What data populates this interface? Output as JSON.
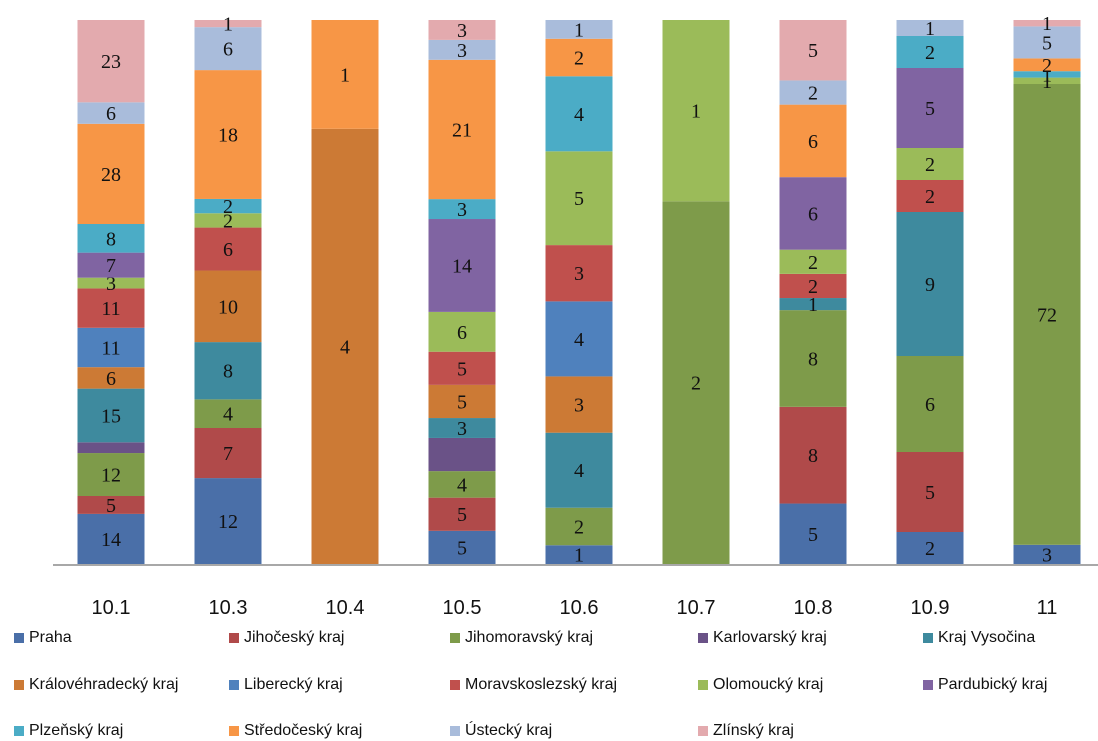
{
  "chart_data": {
    "type": "bar",
    "stacked": true,
    "normalized_to_100_percent": true,
    "categories": [
      "10.1",
      "10.3",
      "10.4",
      "10.5",
      "10.6",
      "10.7",
      "10.8",
      "10.9",
      "11"
    ],
    "legend_position": "bottom",
    "grid": false,
    "series": [
      {
        "name": "Praha",
        "color": "#4A6FA8",
        "values": [
          14,
          12,
          0,
          5,
          1,
          0,
          5,
          2,
          3
        ]
      },
      {
        "name": "Jihočeský kraj",
        "color": "#B04A4A",
        "values": [
          5,
          7,
          0,
          5,
          0,
          0,
          8,
          5,
          0
        ]
      },
      {
        "name": "Jihomoravský kraj",
        "color": "#7E9B4A",
        "values": [
          12,
          4,
          0,
          4,
          2,
          2,
          8,
          6,
          72
        ]
      },
      {
        "name": "Karlovarský kraj",
        "color": "#6A5287",
        "values": [
          3,
          0,
          0,
          5,
          0,
          0,
          0,
          0,
          0
        ],
        "labels": [
          "",
          "",
          "",
          "",
          "",
          "",
          "",
          "",
          ""
        ]
      },
      {
        "name": "Kraj Vysočina",
        "color": "#3E8A9E",
        "values": [
          15,
          8,
          0,
          3,
          4,
          0,
          1,
          9,
          0
        ]
      },
      {
        "name": "Královéhradecký kraj",
        "color": "#CC7A35",
        "values": [
          6,
          10,
          4,
          5,
          3,
          0,
          0,
          0,
          0
        ]
      },
      {
        "name": "Liberecký kraj",
        "color": "#4F81BD",
        "values": [
          11,
          0,
          0,
          0,
          4,
          0,
          0,
          0,
          0
        ]
      },
      {
        "name": "Moravskoslezský kraj",
        "color": "#C0504D",
        "values": [
          11,
          6,
          0,
          5,
          3,
          0,
          2,
          2,
          0
        ]
      },
      {
        "name": "Olomoucký kraj",
        "color": "#9BBB59",
        "values": [
          3,
          2,
          0,
          6,
          5,
          1,
          2,
          2,
          1
        ]
      },
      {
        "name": "Pardubický kraj",
        "color": "#8064A2",
        "values": [
          7,
          0,
          0,
          14,
          0,
          0,
          6,
          5,
          0
        ]
      },
      {
        "name": "Plzeňský kraj",
        "color": "#4BACC6",
        "values": [
          8,
          2,
          0,
          3,
          4,
          0,
          0,
          2,
          1
        ]
      },
      {
        "name": "Středočeský kraj",
        "color": "#F79646",
        "values": [
          28,
          18,
          1,
          21,
          2,
          0,
          6,
          0,
          2
        ]
      },
      {
        "name": "Ústecký kraj",
        "color": "#A9BCDB",
        "values": [
          6,
          6,
          0,
          3,
          1,
          0,
          2,
          1,
          5
        ]
      },
      {
        "name": "Zlínský kraj",
        "color": "#E3AAAE",
        "values": [
          23,
          1,
          0,
          3,
          0,
          0,
          5,
          0,
          1
        ]
      }
    ]
  }
}
